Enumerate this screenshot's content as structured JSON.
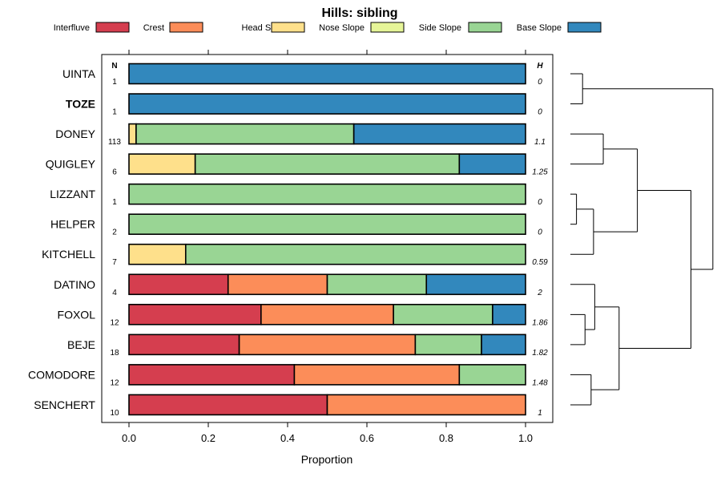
{
  "chart_data": {
    "type": "bar",
    "orientation": "horizontal",
    "stacked": true,
    "title": "Hills: sibling",
    "xlabel": "Proportion",
    "xlim": [
      0,
      1
    ],
    "xticks": [
      {
        "value": 0.0,
        "label": "0.0"
      },
      {
        "value": 0.2,
        "label": "0.2"
      },
      {
        "value": 0.4,
        "label": "0.4"
      },
      {
        "value": 0.6,
        "label": "0.6"
      },
      {
        "value": 0.8,
        "label": "0.8"
      },
      {
        "value": 1.0,
        "label": "1.0"
      }
    ],
    "n_header": "N",
    "h_header": "H",
    "legend": [
      {
        "name": "Interfluve",
        "color": "#D53E4F"
      },
      {
        "name": "Crest",
        "color": "#FC8D59"
      },
      {
        "name": "Head Slope",
        "color": "#FEE08B"
      },
      {
        "name": "Nose Slope",
        "color": "#E6F598"
      },
      {
        "name": "Side Slope",
        "color": "#99D594"
      },
      {
        "name": "Base Slope",
        "color": "#3288BD"
      }
    ],
    "categories": [
      {
        "name": "UINTA",
        "bold": false,
        "n": "1",
        "h": "0",
        "values": [
          0,
          0,
          0,
          0,
          0,
          1
        ]
      },
      {
        "name": "TOZE",
        "bold": true,
        "n": "1",
        "h": "0",
        "values": [
          0,
          0,
          0,
          0,
          0,
          1
        ]
      },
      {
        "name": "DONEY",
        "bold": false,
        "n": "113",
        "h": "1.1",
        "values": [
          0,
          0,
          0.018,
          0,
          0.549,
          0.433
        ]
      },
      {
        "name": "QUIGLEY",
        "bold": false,
        "n": "6",
        "h": "1.25",
        "values": [
          0,
          0,
          0.167,
          0,
          0.666,
          0.167
        ]
      },
      {
        "name": "LIZZANT",
        "bold": false,
        "n": "1",
        "h": "0",
        "values": [
          0,
          0,
          0,
          0,
          1,
          0
        ]
      },
      {
        "name": "HELPER",
        "bold": false,
        "n": "2",
        "h": "0",
        "values": [
          0,
          0,
          0,
          0,
          1,
          0
        ]
      },
      {
        "name": "KITCHELL",
        "bold": false,
        "n": "7",
        "h": "0.59",
        "values": [
          0,
          0,
          0.143,
          0,
          0.857,
          0
        ]
      },
      {
        "name": "DATINO",
        "bold": false,
        "n": "4",
        "h": "2",
        "values": [
          0.25,
          0.25,
          0,
          0,
          0.25,
          0.25
        ]
      },
      {
        "name": "FOXOL",
        "bold": false,
        "n": "12",
        "h": "1.86",
        "values": [
          0.333,
          0.334,
          0,
          0,
          0.25,
          0.083
        ]
      },
      {
        "name": "BEJE",
        "bold": false,
        "n": "18",
        "h": "1.82",
        "values": [
          0.278,
          0.444,
          0,
          0,
          0.167,
          0.111
        ]
      },
      {
        "name": "COMODORE",
        "bold": false,
        "n": "12",
        "h": "1.48",
        "values": [
          0.417,
          0.416,
          0,
          0,
          0.167,
          0
        ]
      },
      {
        "name": "SENCHERT",
        "bold": false,
        "n": "10",
        "h": "1",
        "values": [
          0.5,
          0.5,
          0,
          0,
          0,
          0
        ]
      }
    ],
    "dendrogram": {
      "type": "hierarchical-clustering",
      "merges": [
        {
          "left": "UINTA",
          "right": "TOZE",
          "height": 0.1
        },
        {
          "left": "LIZZANT",
          "right": "HELPER",
          "height": 0.05
        },
        {
          "left": "FOXOL",
          "right": "BEJE",
          "height": 0.2
        },
        {
          "left": "COMODORE",
          "right": "SENCHERT",
          "height": 0.25
        },
        {
          "left": "DONEY",
          "right": "QUIGLEY",
          "height": 0.3
        },
        {
          "left": "LIZZANT+HELPER",
          "right": "KITCHELL",
          "height": 0.2
        },
        {
          "left": "DATINO",
          "right": "FOXOL+BEJE",
          "height": 0.25
        },
        {
          "left": "DONEY+QUIGLEY",
          "right": "LIZZANT+HELPER+KITCHELL",
          "height": 0.5
        },
        {
          "left": "DATINO+FOXOL+BEJE",
          "right": "COMODORE+SENCHERT",
          "height": 0.4
        },
        {
          "left": "DATINO..SENCHERT",
          "right": "DONEY..KITCHELL",
          "height": 0.9
        },
        {
          "left": "UINTA+TOZE",
          "right": "rest",
          "height": 1.0
        }
      ]
    }
  }
}
